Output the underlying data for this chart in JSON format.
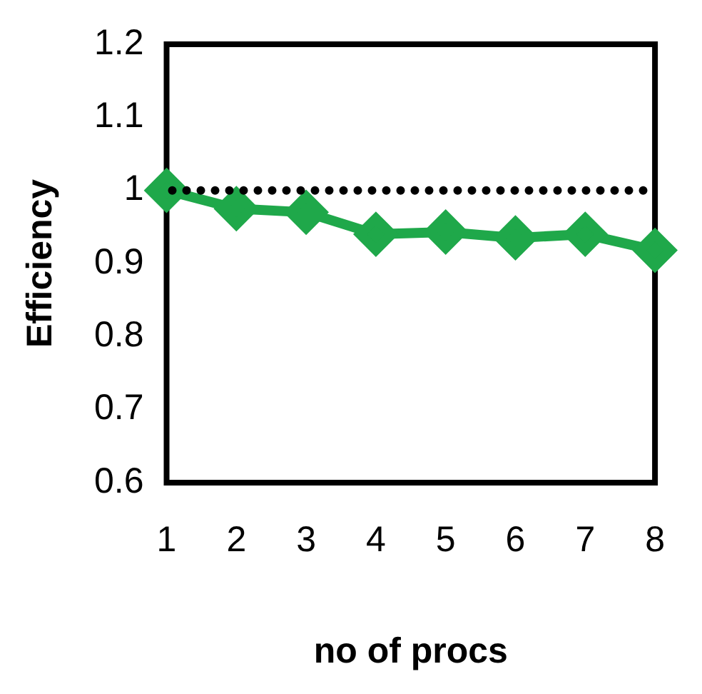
{
  "chart_data": {
    "type": "line",
    "xlabel": "no of procs",
    "ylabel": "Efficiency",
    "categories": [
      "1",
      "2",
      "3",
      "4",
      "5",
      "6",
      "7",
      "8"
    ],
    "series": [
      {
        "color": "#1fa84a",
        "values": [
          1.0,
          0.975,
          0.97,
          0.94,
          0.943,
          0.935,
          0.94,
          0.918
        ]
      }
    ],
    "ylim": [
      0.6,
      1.2
    ],
    "yticks": [
      0.6,
      0.7,
      0.8,
      0.9,
      1,
      1.1,
      1.2
    ],
    "ref_lines": [
      {
        "axis": "y",
        "value": 1,
        "color": "#000000",
        "line_style": "dotted"
      }
    ],
    "grid": false,
    "legend": false,
    "marker": "diamond",
    "line_style": "solid"
  }
}
